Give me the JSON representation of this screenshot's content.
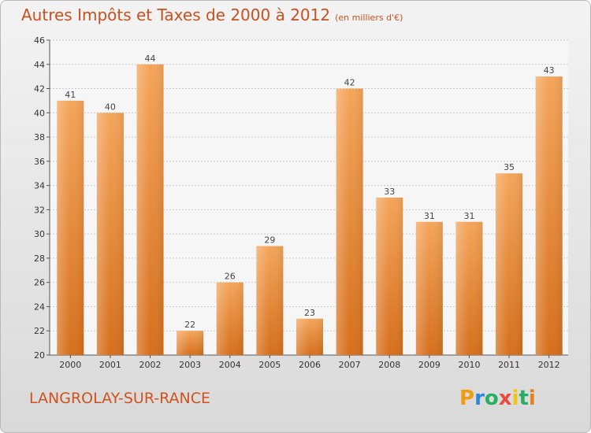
{
  "header": {
    "title": "Autres Impôts et Taxes de 2000 à 2012",
    "subtitle": "(en milliers d'€)"
  },
  "footer": {
    "commune": "LANGROLAY-SUR-RANCE",
    "logo_letters": [
      "P",
      "r",
      "o",
      "x",
      "i",
      "t",
      "i"
    ],
    "logo_colors": [
      "#f39c12",
      "#2e86de",
      "#27ae60",
      "#e74c3c",
      "#f1c40f",
      "#27ae60",
      "#e67e22"
    ]
  },
  "chart_data": {
    "type": "bar",
    "title": "Autres Impôts et Taxes de 2000 à 2012",
    "subtitle": "(en milliers d'€)",
    "categories": [
      "2000",
      "2001",
      "2002",
      "2003",
      "2004",
      "2005",
      "2006",
      "2007",
      "2008",
      "2009",
      "2010",
      "2011",
      "2012"
    ],
    "values": [
      41,
      40,
      44,
      22,
      26,
      29,
      23,
      42,
      33,
      31,
      31,
      35,
      43
    ],
    "ylim": [
      20,
      46
    ],
    "yticks": [
      20,
      22,
      24,
      26,
      28,
      30,
      32,
      34,
      36,
      38,
      40,
      42,
      44,
      46
    ],
    "grid": true,
    "bar_color": "#e8863a",
    "label_color": "#444444"
  }
}
